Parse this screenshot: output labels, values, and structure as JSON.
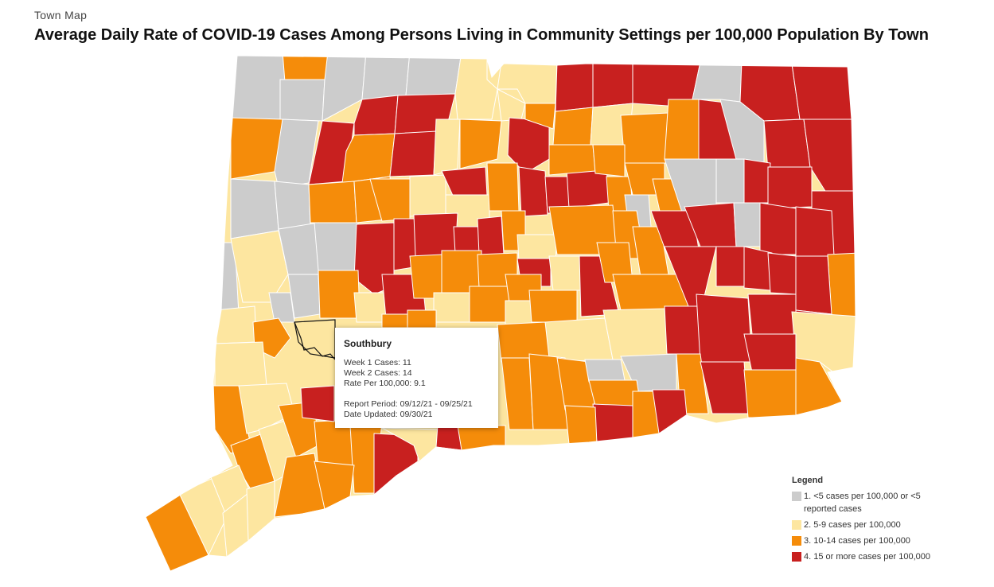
{
  "header": {
    "section_label": "Town Map",
    "title": "Average Daily Rate of COVID-19 Cases Among Persons Living in Community Settings per 100,000 Population By Town"
  },
  "tooltip": {
    "town": "Southbury",
    "week1": "Week 1 Cases: 11",
    "week2": "Week 2 Cases: 14",
    "rate": "Rate Per 100,000: 9.1",
    "report_period": "Report Period: 09/12/21 - 09/25/21",
    "date_updated": "Date Updated: 09/30/21"
  },
  "legend": {
    "title": "Legend",
    "items": [
      {
        "label": "1. <5 cases per 100,000 or <5 reported cases",
        "color": "#cccccc"
      },
      {
        "label": "2. 5-9 cases per 100,000",
        "color": "#fde6a0"
      },
      {
        "label": "3. 10-14 cases per 100,000",
        "color": "#f58c0a"
      },
      {
        "label": "4. 15 or more cases per 100,000",
        "color": "#c8201f"
      }
    ]
  },
  "colors": {
    "cat1": "#cccccc",
    "cat2": "#fde6a0",
    "cat3": "#f58c0a",
    "cat4": "#c8201f"
  }
}
